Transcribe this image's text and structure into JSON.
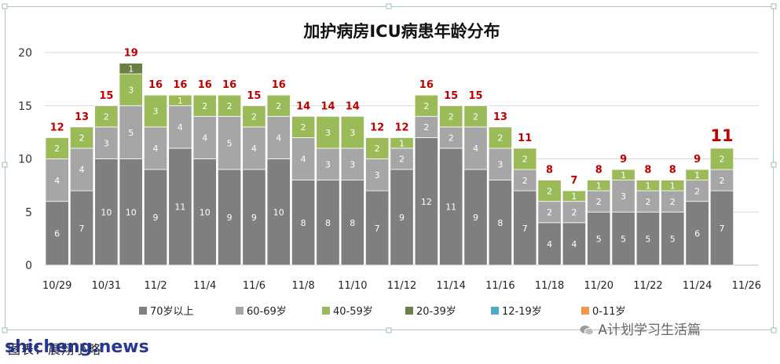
{
  "chart_data": {
    "type": "bar",
    "stacked": true,
    "title": "加护病房ICU病患年龄分布",
    "xlabel": "",
    "ylabel": "",
    "ylim": [
      0,
      20
    ],
    "yticks": [
      0,
      5,
      10,
      15,
      20
    ],
    "grid": true,
    "legend_position": "bottom",
    "x_tick_labels": [
      "10/29",
      "10/31",
      "11/2",
      "11/4",
      "11/6",
      "11/8",
      "11/10",
      "11/12",
      "11/14",
      "11/16",
      "11/18",
      "11/20",
      "11/22",
      "11/24",
      "11/26"
    ],
    "categories": [
      "10/29",
      "10/30",
      "10/31",
      "11/1",
      "11/2",
      "11/3",
      "11/4",
      "11/5",
      "11/6",
      "11/7",
      "11/8",
      "11/9",
      "11/10",
      "11/11",
      "11/12",
      "11/13",
      "11/14",
      "11/15",
      "11/16",
      "11/17",
      "11/18",
      "11/19",
      "11/20",
      "11/21",
      "11/22",
      "11/23",
      "11/24",
      "11/25",
      "11/26"
    ],
    "series": [
      {
        "name": "70岁以上",
        "color": "#7f7f7f",
        "values": [
          6,
          7,
          10,
          10,
          9,
          11,
          10,
          9,
          9,
          10,
          8,
          8,
          8,
          7,
          9,
          12,
          11,
          9,
          8,
          7,
          4,
          4,
          5,
          5,
          5,
          5,
          6,
          7,
          null
        ]
      },
      {
        "name": "60-69岁",
        "color": "#a6a6a6",
        "values": [
          4,
          4,
          3,
          5,
          4,
          4,
          4,
          5,
          4,
          4,
          4,
          3,
          3,
          3,
          2,
          2,
          2,
          4,
          3,
          2,
          2,
          2,
          2,
          3,
          2,
          2,
          2,
          2,
          null
        ]
      },
      {
        "name": "40-59岁",
        "color": "#9bbb59",
        "values": [
          2,
          2,
          2,
          3,
          3,
          1,
          2,
          2,
          2,
          2,
          2,
          3,
          3,
          2,
          1,
          2,
          2,
          2,
          2,
          2,
          2,
          1,
          1,
          1,
          1,
          1,
          1,
          2,
          null
        ]
      },
      {
        "name": "20-39岁",
        "color": "#6b7f44",
        "values": [
          0,
          0,
          0,
          1,
          0,
          0,
          0,
          0,
          0,
          0,
          0,
          0,
          0,
          0,
          0,
          0,
          0,
          0,
          0,
          0,
          0,
          0,
          0,
          0,
          0,
          0,
          0,
          0,
          null
        ]
      },
      {
        "name": "12-19岁",
        "color": "#4bacc6",
        "values": [
          0,
          0,
          0,
          0,
          0,
          0,
          0,
          0,
          0,
          0,
          0,
          0,
          0,
          0,
          0,
          0,
          0,
          0,
          0,
          0,
          0,
          0,
          0,
          0,
          0,
          0,
          0,
          0,
          null
        ]
      },
      {
        "name": "0-11岁",
        "color": "#f79646",
        "values": [
          0,
          0,
          0,
          0,
          0,
          0,
          0,
          0,
          0,
          0,
          0,
          0,
          0,
          0,
          0,
          0,
          0,
          0,
          0,
          0,
          0,
          0,
          0,
          0,
          0,
          0,
          0,
          0,
          null
        ]
      }
    ],
    "totals": [
      12,
      13,
      15,
      19,
      16,
      16,
      16,
      16,
      15,
      16,
      14,
      14,
      14,
      12,
      12,
      16,
      15,
      15,
      13,
      11,
      8,
      7,
      8,
      9,
      8,
      8,
      9,
      11,
      null
    ]
  },
  "colors": {
    "total_label": "#c00000",
    "segment_label": "#ffffff",
    "grid": "#d9d9d9",
    "frame": "#a9c8c6"
  },
  "footer": {
    "source": "图表：晨翔小略"
  },
  "watermark": {
    "site": "shicheng.news",
    "brand": "A计划学习生活篇",
    "brand_icon": "wechat-icon"
  }
}
